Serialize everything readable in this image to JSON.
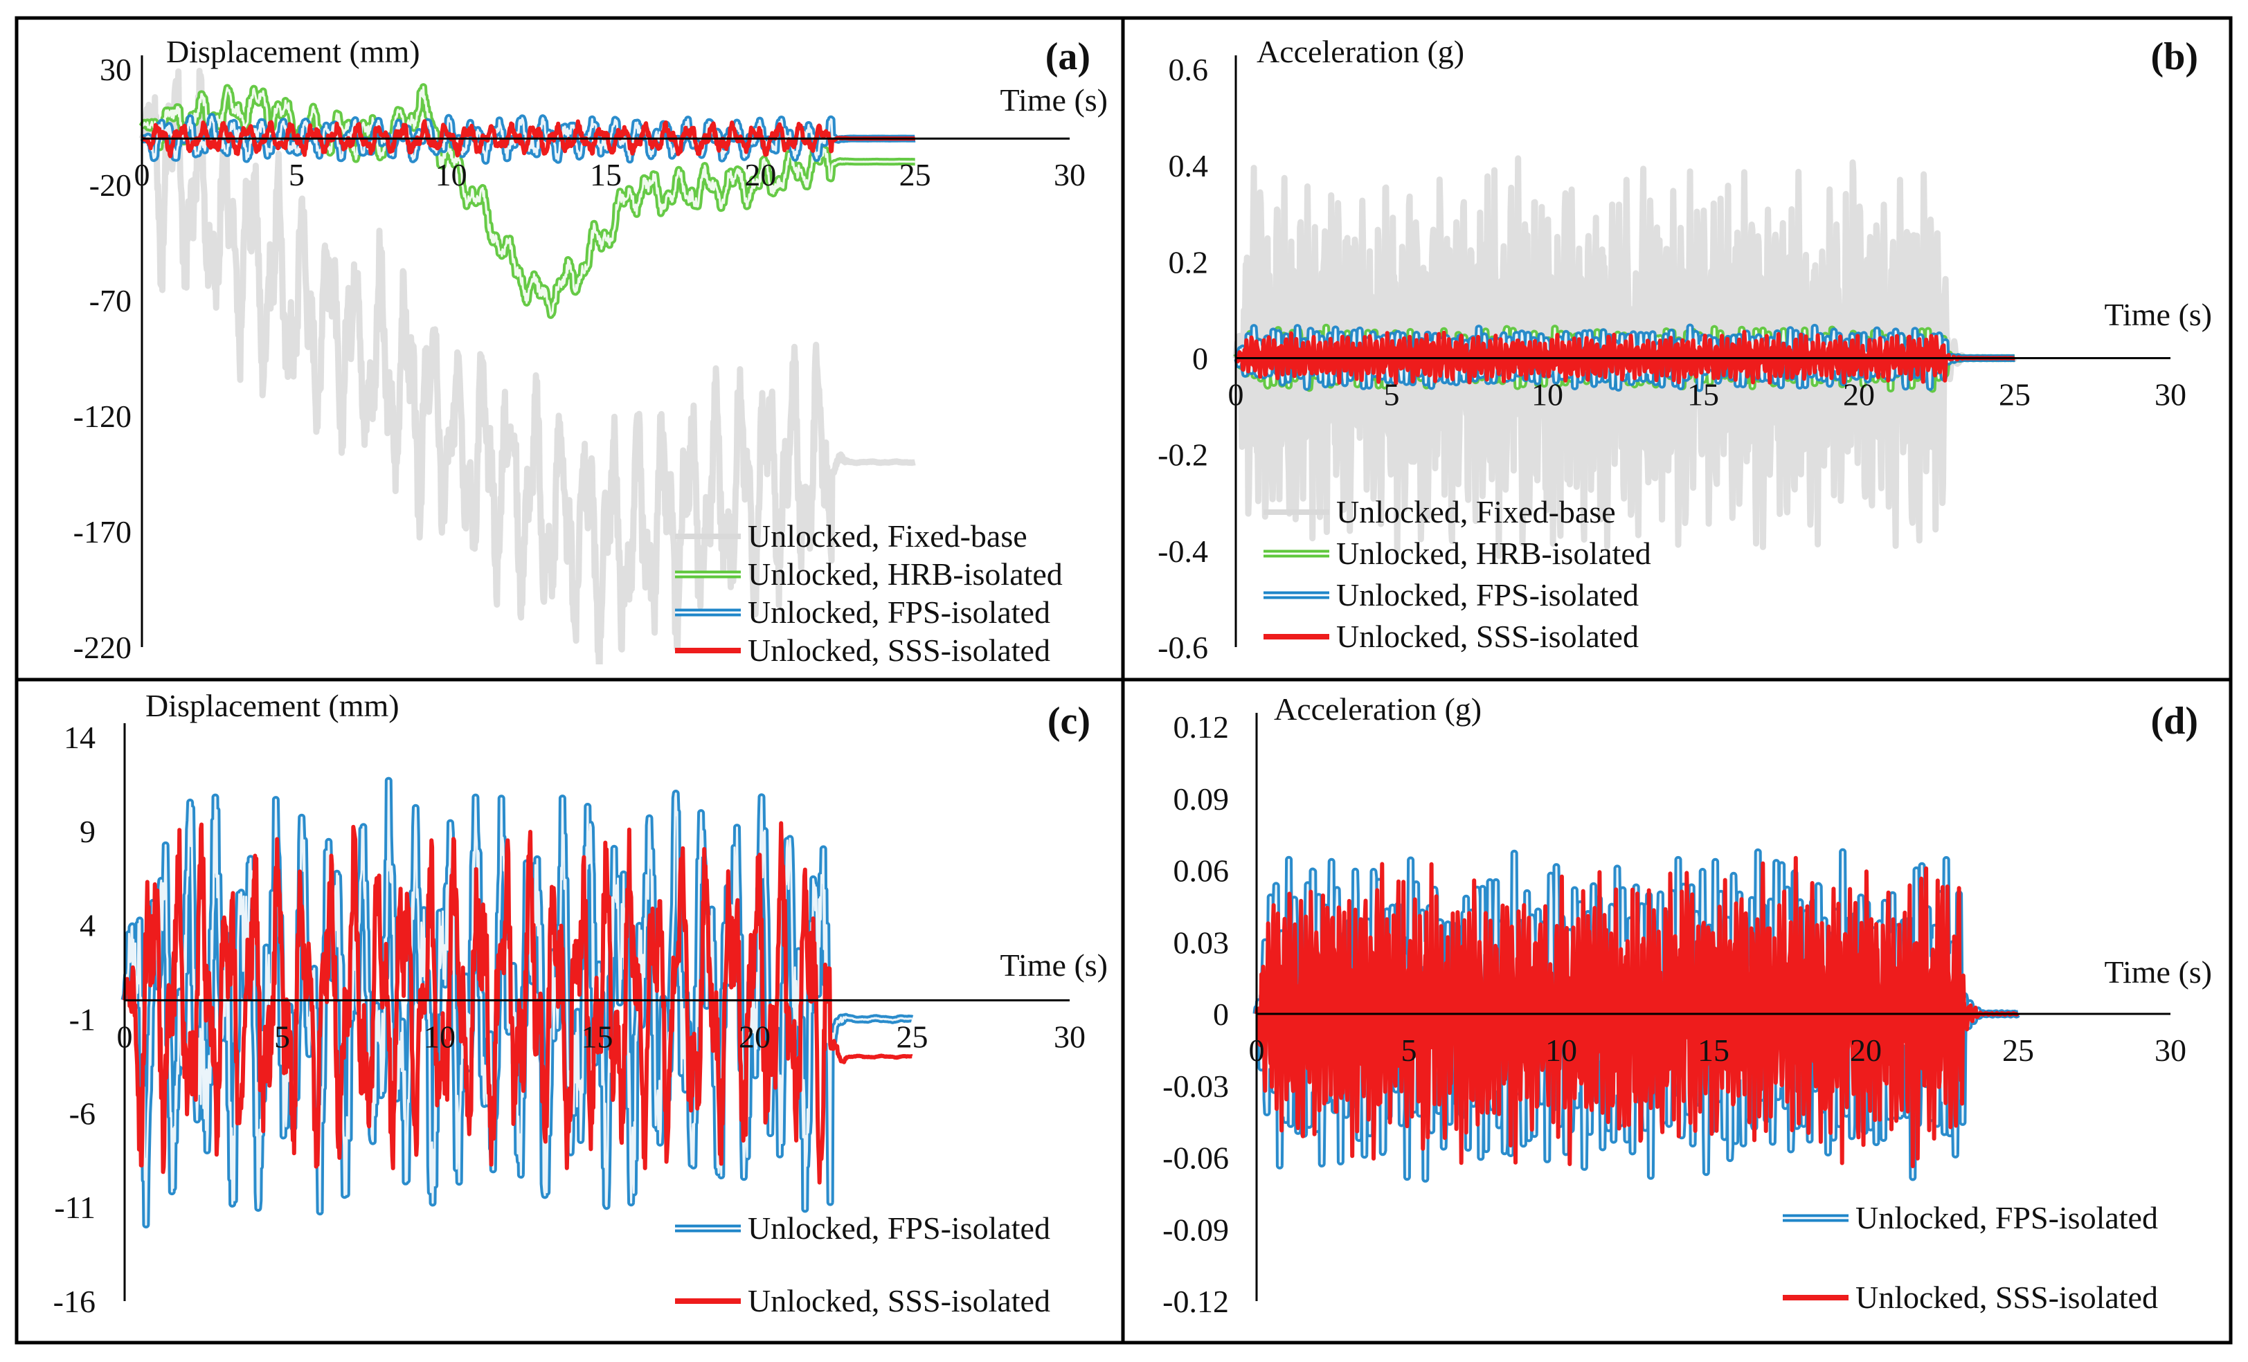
{
  "chart_data": [
    {
      "panel": "(a)",
      "type": "line",
      "ylabel": "Displacement (mm)",
      "xlabel": "Time (s)",
      "xlim": [
        0,
        30
      ],
      "ylim": [
        -220,
        30
      ],
      "xticks": [
        0,
        5,
        10,
        15,
        20,
        25,
        30
      ],
      "xtick_labels": [
        "0",
        "5",
        "10",
        "15",
        "20",
        "25",
        "30"
      ],
      "yticks": [
        30,
        -20,
        -70,
        -120,
        -170,
        -220
      ],
      "ytick_labels": [
        "30",
        "-20",
        "-70",
        "-120",
        "-170",
        "-220"
      ],
      "legend_position": "bottom-right",
      "series": [
        {
          "name": "Unlocked, Fixed-base",
          "color": "#d9d9d9",
          "x": [
            0,
            1.5,
            3,
            4.5,
            6,
            7.5,
            9,
            10.5,
            12,
            13.5,
            15,
            16.5,
            18,
            19.5,
            21,
            22,
            25
          ],
          "y": [
            0,
            -20,
            -45,
            -65,
            -80,
            -95,
            -115,
            -135,
            -150,
            -165,
            -175,
            -170,
            -160,
            -150,
            -145,
            -140,
            -140
          ],
          "amp": 55,
          "freq": 1.2
        },
        {
          "name": "Unlocked, HRB-isolated",
          "color": "#5ec73c",
          "x": [
            0,
            2,
            4,
            5,
            8,
            9,
            10,
            11,
            12,
            13,
            14,
            15,
            16,
            17,
            18,
            20,
            22,
            25
          ],
          "y": [
            5,
            10,
            15,
            5,
            0,
            15,
            -10,
            -30,
            -55,
            -70,
            -60,
            -40,
            -22,
            -24,
            -22,
            -19,
            -10,
            -10
          ],
          "amp": 10,
          "freq": 1.1
        },
        {
          "name": "Unlocked, FPS-isolated",
          "color": "#1f86c9",
          "x": [
            0,
            5,
            10,
            15,
            20,
            22,
            23,
            25
          ],
          "y": [
            0,
            0,
            0,
            0,
            0,
            0,
            0,
            0
          ],
          "amp": 9,
          "freq": 1.3
        },
        {
          "name": "Unlocked, SSS-isolated",
          "color": "#ee1c1c",
          "x": [
            0,
            5,
            10,
            15,
            20,
            22,
            23,
            25
          ],
          "y": [
            0,
            0,
            0,
            0,
            0,
            0,
            0,
            0
          ],
          "amp": 7,
          "freq": 1.4
        }
      ]
    },
    {
      "panel": "(b)",
      "type": "line",
      "ylabel": "Acceleration (g)",
      "xlabel": "Time (s)",
      "xlim": [
        0,
        30
      ],
      "ylim": [
        -0.6,
        0.6
      ],
      "xticks": [
        0,
        5,
        10,
        15,
        20,
        25,
        30
      ],
      "xtick_labels": [
        "0",
        "5",
        "10",
        "15",
        "20",
        "25",
        "30"
      ],
      "yticks": [
        0.6,
        0.4,
        0.2,
        0,
        -0.2,
        -0.4,
        -0.6
      ],
      "ytick_labels": [
        "0.6",
        "0.4",
        "0.2",
        "0",
        "-0.2",
        "-0.4",
        "-0.6"
      ],
      "legend_position": "bottom-center",
      "series": [
        {
          "name": "Unlocked, Fixed-base",
          "color": "#d9d9d9",
          "x": [
            0,
            2,
            5,
            10,
            15,
            20,
            22,
            23,
            25
          ],
          "y": [
            0,
            0,
            0,
            0,
            0,
            0,
            0,
            0,
            0
          ],
          "amp": 0.4,
          "freq": 4.0
        },
        {
          "name": "Unlocked, HRB-isolated",
          "color": "#5ec73c",
          "x": [
            0,
            5,
            10,
            15,
            20,
            23,
            25
          ],
          "y": [
            0,
            0,
            0,
            0,
            0,
            0,
            0
          ],
          "amp": 0.06,
          "freq": 4.5
        },
        {
          "name": "Unlocked, FPS-isolated",
          "color": "#1f86c9",
          "x": [
            0,
            5,
            10,
            15,
            20,
            23,
            25
          ],
          "y": [
            0,
            0,
            0,
            0,
            0,
            0,
            0
          ],
          "amp": 0.06,
          "freq": 5.0
        },
        {
          "name": "Unlocked, SSS-isolated",
          "color": "#ee1c1c",
          "x": [
            0,
            5,
            10,
            15,
            20,
            23,
            25
          ],
          "y": [
            0,
            0,
            0,
            0,
            0,
            0,
            0
          ],
          "amp": 0.05,
          "freq": 5.5
        }
      ]
    },
    {
      "panel": "(c)",
      "type": "line",
      "ylabel": "Displacement (mm)",
      "xlabel": "Time (s)",
      "xlim": [
        0,
        30
      ],
      "ylim": [
        -16,
        14
      ],
      "xticks": [
        0,
        5,
        10,
        15,
        20,
        25,
        30
      ],
      "xtick_labels": [
        "0",
        "5",
        "10",
        "15",
        "20",
        "25",
        "30"
      ],
      "yticks": [
        14,
        9,
        4,
        -1,
        -6,
        -11,
        -16
      ],
      "ytick_labels": [
        "14",
        "9",
        "4",
        "-1",
        "-6",
        "-11",
        "-16"
      ],
      "legend_position": "bottom-right",
      "series": [
        {
          "name": "Unlocked, FPS-isolated",
          "color": "#1f86c9",
          "x": [
            0,
            1,
            2,
            4,
            6,
            8,
            10,
            12,
            14,
            16,
            18,
            20,
            22,
            22.5,
            23,
            25
          ],
          "y": [
            0,
            0,
            0,
            0,
            0,
            0,
            0,
            0,
            0,
            0,
            0,
            0,
            0,
            -1,
            -1,
            -1
          ],
          "amp": 11,
          "freq": 1.1
        },
        {
          "name": "Unlocked, SSS-isolated",
          "color": "#ee1c1c",
          "x": [
            0,
            1,
            2,
            4,
            6,
            8,
            10,
            12,
            14,
            16,
            18,
            20,
            22,
            22.5,
            23,
            25
          ],
          "y": [
            0,
            0,
            0,
            0,
            0,
            0,
            0,
            0,
            0,
            0,
            0,
            0,
            0,
            -3,
            -3,
            -3
          ],
          "amp": 9,
          "freq": 1.25
        }
      ]
    },
    {
      "panel": "(d)",
      "type": "line",
      "ylabel": "Acceleration (g)",
      "xlabel": "Time (s)",
      "xlim": [
        0,
        30
      ],
      "ylim": [
        -0.12,
        0.12
      ],
      "xticks": [
        0,
        5,
        10,
        15,
        20,
        25,
        30
      ],
      "xtick_labels": [
        "0",
        "5",
        "10",
        "15",
        "20",
        "25",
        "30"
      ],
      "yticks": [
        0.12,
        0.09,
        0.06,
        0.03,
        0,
        -0.03,
        -0.06,
        -0.09,
        -0.12
      ],
      "ytick_labels": [
        "0.12",
        "0.09",
        "0.06",
        "0.03",
        "0",
        "-0.03",
        "-0.06",
        "-0.09",
        "-0.12"
      ],
      "legend_position": "bottom-right",
      "series": [
        {
          "name": "Unlocked, FPS-isolated",
          "color": "#1f86c9",
          "x": [
            0,
            5,
            10,
            15,
            20,
            23,
            25
          ],
          "y": [
            0,
            0,
            0,
            0,
            0,
            0,
            0
          ],
          "amp": 0.065,
          "freq": 5.0
        },
        {
          "name": "Unlocked, SSS-isolated",
          "color": "#ee1c1c",
          "x": [
            0,
            5,
            10,
            15,
            20,
            23,
            25
          ],
          "y": [
            0,
            0,
            0,
            0,
            0,
            0,
            0
          ],
          "amp": 0.06,
          "freq": 5.6
        }
      ]
    }
  ]
}
